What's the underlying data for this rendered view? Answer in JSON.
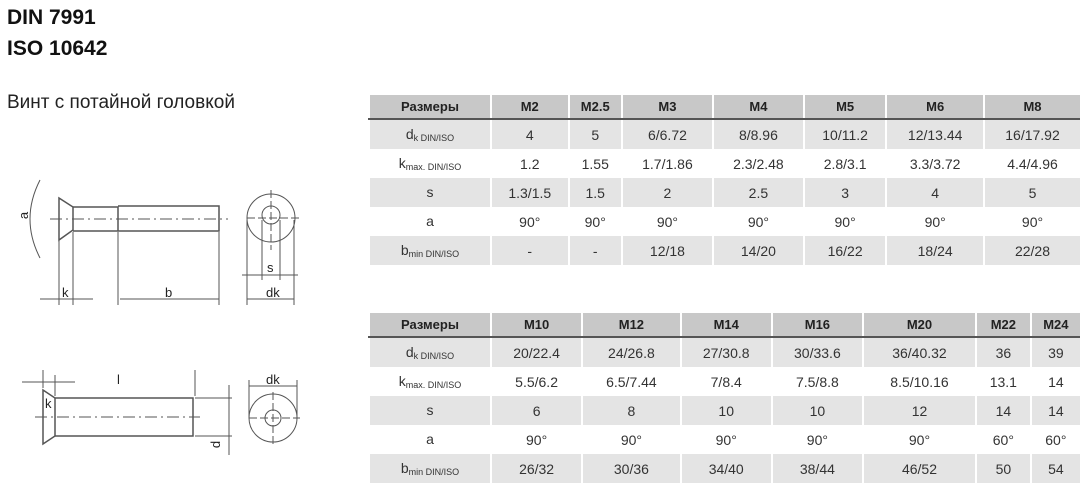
{
  "header": {
    "title1": "DIN 7991",
    "title2": "ISO 10642",
    "subtitle": "Винт с потайной головкой"
  },
  "drawing_labels": {
    "a": "a",
    "k": "k",
    "b": "b",
    "s": "s",
    "dk_sub": "dk",
    "l": "l",
    "k2": "k",
    "dk": "dk",
    "d": "d"
  },
  "tables": [
    {
      "header": [
        "Размеры",
        "M2",
        "M2.5",
        "M3",
        "M4",
        "M5",
        "M6",
        "M8"
      ],
      "rows": [
        {
          "label": "d",
          "sub": "k DIN/ISO",
          "values": [
            "4",
            "5",
            "6/6.72",
            "8/8.96",
            "10/11.2",
            "12/13.44",
            "16/17.92"
          ]
        },
        {
          "label": "k",
          "sub": "max. DIN/ISO",
          "values": [
            "1.2",
            "1.55",
            "1.7/1.86",
            "2.3/2.48",
            "2.8/3.1",
            "3.3/3.72",
            "4.4/4.96"
          ]
        },
        {
          "label": "s",
          "sub": "",
          "values": [
            "1.3/1.5",
            "1.5",
            "2",
            "2.5",
            "3",
            "4",
            "5"
          ]
        },
        {
          "label": "a",
          "sub": "",
          "values": [
            "90°",
            "90°",
            "90°",
            "90°",
            "90°",
            "90°",
            "90°"
          ]
        },
        {
          "label": "b",
          "sub": "min DIN/ISO",
          "values": [
            "-",
            "-",
            "12/18",
            "14/20",
            "16/22",
            "18/24",
            "22/28"
          ]
        }
      ]
    },
    {
      "header": [
        "Размеры",
        "M10",
        "M12",
        "M14",
        "M16",
        "M20",
        "M22",
        "M24"
      ],
      "rows": [
        {
          "label": "d",
          "sub": "k DIN/ISO",
          "values": [
            "20/22.4",
            "24/26.8",
            "27/30.8",
            "30/33.6",
            "36/40.32",
            "36",
            "39"
          ]
        },
        {
          "label": "k",
          "sub": "max. DIN/ISO",
          "values": [
            "5.5/6.2",
            "6.5/7.44",
            "7/8.4",
            "7.5/8.8",
            "8.5/10.16",
            "13.1",
            "14"
          ]
        },
        {
          "label": "s",
          "sub": "",
          "values": [
            "6",
            "8",
            "10",
            "10",
            "12",
            "14",
            "14"
          ]
        },
        {
          "label": "a",
          "sub": "",
          "values": [
            "90°",
            "90°",
            "90°",
            "90°",
            "90°",
            "60°",
            "60°"
          ]
        },
        {
          "label": "b",
          "sub": "min DIN/ISO",
          "values": [
            "26/32",
            "30/36",
            "34/40",
            "38/44",
            "46/52",
            "50",
            "54"
          ]
        }
      ]
    }
  ]
}
